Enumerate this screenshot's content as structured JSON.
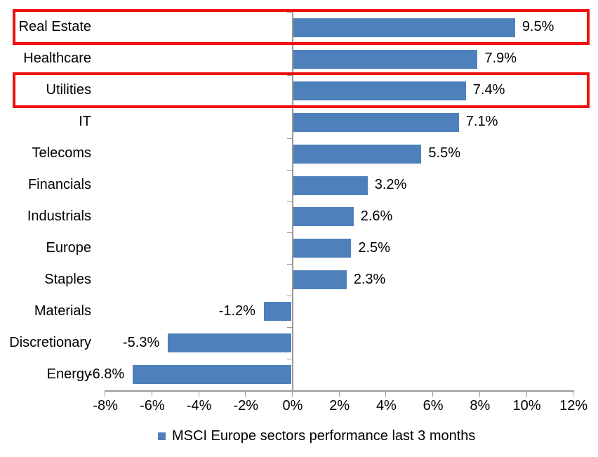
{
  "chart_data": {
    "type": "bar",
    "orientation": "horizontal",
    "title": "",
    "legend": "MSCI Europe sectors performance last 3 months",
    "legend_position": "bottom",
    "categories": [
      "Real Estate",
      "Healthcare",
      "Utilities",
      "IT",
      "Telecoms",
      "Financials",
      "Industrials",
      "Europe",
      "Staples",
      "Materials",
      "Discretionary",
      "Energy"
    ],
    "values": [
      9.5,
      7.9,
      7.4,
      7.1,
      5.5,
      3.2,
      2.6,
      2.5,
      2.3,
      -1.2,
      -5.3,
      -6.8
    ],
    "value_labels": [
      "9.5%",
      "7.9%",
      "7.4%",
      "7.1%",
      "5.5%",
      "3.2%",
      "2.6%",
      "2.5%",
      "2.3%",
      "-1.2%",
      "-5.3%",
      "-6.8%"
    ],
    "xlim": [
      -8,
      12
    ],
    "xtick_values": [
      -8,
      -6,
      -4,
      -2,
      0,
      2,
      4,
      6,
      8,
      10,
      12
    ],
    "xtick_labels": [
      "-8%",
      "-6%",
      "-4%",
      "-2%",
      "0%",
      "2%",
      "4%",
      "6%",
      "8%",
      "10%",
      "12%"
    ],
    "grid": false,
    "bar_color": "#4E81BB",
    "axis_color": "#9A9A9A",
    "text_color": "#000000",
    "highlight": {
      "color": "#EF1010",
      "categories": [
        "Real Estate",
        "Utilities"
      ]
    }
  }
}
